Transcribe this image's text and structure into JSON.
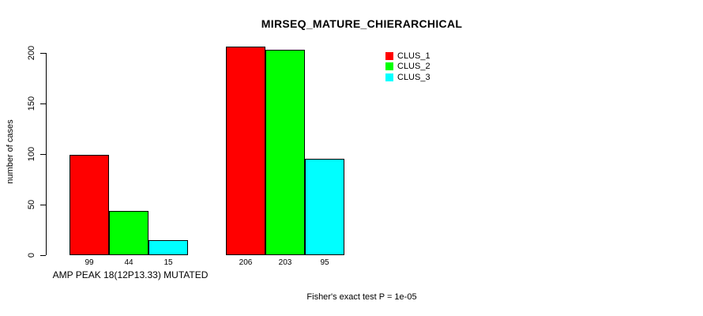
{
  "title": "MIRSEQ_MATURE_CHIERARCHICAL",
  "footer": "Fisher's exact test P = 1e-05",
  "chart_data": {
    "type": "bar",
    "title": "MIRSEQ_MATURE_CHIERARCHICAL",
    "ylabel": "number of cases",
    "xlabel": "",
    "ylim": [
      0,
      200
    ],
    "yticks": [
      0,
      50,
      100,
      150,
      200
    ],
    "grid": false,
    "legend_position": "top-right",
    "series": [
      {
        "name": "CLUS_1",
        "color": "#ff0000"
      },
      {
        "name": "CLUS_2",
        "color": "#00ff00"
      },
      {
        "name": "CLUS_3",
        "color": "#00ffff"
      }
    ],
    "groups": [
      {
        "label": "AMP PEAK 18(12P13.33) MUTATED",
        "values": [
          99,
          44,
          15
        ]
      },
      {
        "label": "",
        "values": [
          206,
          203,
          95
        ]
      }
    ],
    "bar_value_labels": [
      [
        99,
        44,
        15
      ],
      [
        206,
        203,
        95
      ]
    ],
    "annotation": "Fisher's exact test P = 1e-05"
  }
}
